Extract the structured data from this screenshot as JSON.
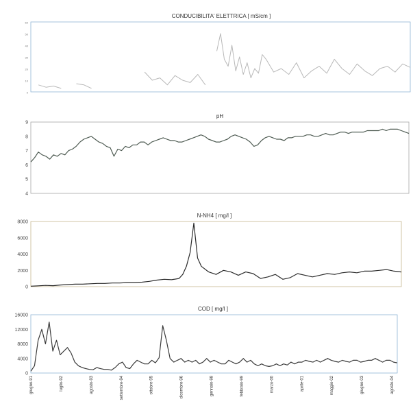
{
  "chart_data": [
    {
      "type": "line",
      "title": "CONDUCIBILITA' ELETTRICA [ mS/cm ]",
      "ylim": [
        0,
        60
      ],
      "yticks": [
        "0",
        "10",
        "20",
        "30",
        "40",
        "50",
        "60"
      ],
      "color": "#b8b8b8",
      "series": [
        {
          "x": [
            0,
            2,
            4,
            6,
            8,
            10,
            12,
            14,
            16,
            18,
            20,
            22,
            24,
            26,
            28,
            30,
            32,
            34,
            36,
            38,
            40,
            42,
            44,
            46,
            48,
            49,
            50,
            51,
            52,
            53,
            54,
            55,
            56,
            57,
            58,
            59,
            60,
            61,
            62,
            64,
            66,
            68,
            70,
            72,
            74,
            76,
            78,
            80,
            82,
            84,
            86,
            88,
            90,
            92,
            94,
            96,
            98,
            100
          ],
          "values": [
            null,
            6,
            4,
            5,
            3,
            null,
            7,
            6,
            3,
            null,
            null,
            null,
            null,
            null,
            null,
            17,
            10,
            12,
            6,
            14,
            10,
            8,
            15,
            6,
            null,
            35,
            50,
            28,
            22,
            40,
            18,
            30,
            15,
            25,
            12,
            20,
            16,
            32,
            28,
            17,
            20,
            15,
            25,
            12,
            18,
            22,
            16,
            28,
            20,
            15,
            24,
            18,
            14,
            20,
            22,
            17,
            24,
            21
          ]
        }
      ]
    },
    {
      "type": "line",
      "title": "pH",
      "ylim": [
        4,
        9
      ],
      "yticks": [
        "4",
        "5",
        "6",
        "7",
        "8",
        "9"
      ],
      "color": "#4e5b52",
      "series": [
        {
          "x": [
            0,
            1,
            2,
            3,
            4,
            5,
            6,
            7,
            8,
            9,
            10,
            11,
            12,
            13,
            14,
            15,
            16,
            17,
            18,
            19,
            20,
            21,
            22,
            23,
            24,
            25,
            26,
            27,
            28,
            29,
            30,
            31,
            32,
            33,
            34,
            35,
            36,
            37,
            38,
            39,
            40,
            41,
            42,
            43,
            44,
            45,
            46,
            47,
            48,
            49,
            50,
            51,
            52,
            53,
            54,
            55,
            56,
            57,
            58,
            59,
            60,
            61,
            62,
            63,
            64,
            65,
            66,
            67,
            68,
            69,
            70,
            71,
            72,
            73,
            74,
            75,
            76,
            77,
            78,
            79,
            80,
            81,
            82,
            83,
            84,
            85,
            86,
            87,
            88,
            89,
            90,
            91,
            92,
            93,
            94,
            95,
            96,
            97,
            98,
            99,
            100
          ],
          "values": [
            6.2,
            6.5,
            6.9,
            6.7,
            6.6,
            6.4,
            6.7,
            6.6,
            6.8,
            6.7,
            7.0,
            7.1,
            7.3,
            7.6,
            7.8,
            7.9,
            8.0,
            7.8,
            7.6,
            7.5,
            7.3,
            7.2,
            6.6,
            7.1,
            7.0,
            7.3,
            7.2,
            7.4,
            7.4,
            7.6,
            7.6,
            7.4,
            7.6,
            7.7,
            7.8,
            7.9,
            7.8,
            7.7,
            7.7,
            7.6,
            7.6,
            7.7,
            7.8,
            7.9,
            8.0,
            8.1,
            8.0,
            7.8,
            7.7,
            7.6,
            7.6,
            7.7,
            7.8,
            8.0,
            8.1,
            8.0,
            7.9,
            7.8,
            7.6,
            7.3,
            7.4,
            7.7,
            7.9,
            8.0,
            7.9,
            7.8,
            7.8,
            7.7,
            7.9,
            7.9,
            8.0,
            8.0,
            8.0,
            8.1,
            8.1,
            8.0,
            8.0,
            8.1,
            8.2,
            8.1,
            8.1,
            8.2,
            8.3,
            8.3,
            8.2,
            8.3,
            8.3,
            8.3,
            8.3,
            8.4,
            8.4,
            8.4,
            8.4,
            8.5,
            8.4,
            8.5,
            8.5,
            8.5,
            8.4,
            8.3,
            8.2
          ]
        }
      ]
    },
    {
      "type": "line",
      "title": "N-NH4 [ mg/l ]",
      "ylim": [
        0,
        8000
      ],
      "yticks": [
        "0",
        "2000",
        "4000",
        "6000",
        "8000"
      ],
      "color": "#2a2a2a",
      "series": [
        {
          "x": [
            0,
            2,
            4,
            6,
            8,
            10,
            12,
            14,
            16,
            18,
            20,
            22,
            24,
            26,
            28,
            30,
            32,
            34,
            36,
            38,
            40,
            41,
            42,
            43,
            44,
            45,
            46,
            48,
            50,
            52,
            54,
            56,
            58,
            60,
            62,
            64,
            66,
            68,
            70,
            72,
            74,
            76,
            78,
            80,
            82,
            84,
            86,
            88,
            90,
            92,
            94,
            96,
            98,
            100
          ],
          "values": [
            50,
            100,
            150,
            120,
            200,
            250,
            300,
            300,
            350,
            400,
            400,
            450,
            450,
            500,
            500,
            550,
            650,
            800,
            900,
            850,
            1000,
            1500,
            2500,
            4200,
            7800,
            3500,
            2500,
            1800,
            1500,
            2000,
            1800,
            1400,
            1800,
            1600,
            1000,
            1200,
            1500,
            900,
            1100,
            1600,
            1400,
            1200,
            1400,
            1600,
            1500,
            1700,
            1800,
            1700,
            1900,
            1900,
            2000,
            2100,
            1900,
            1800
          ]
        }
      ]
    },
    {
      "type": "line",
      "title": "COD [ mg/l ]",
      "ylim": [
        0,
        16000
      ],
      "yticks": [
        "0",
        "4000",
        "8000",
        "12000",
        "16000"
      ],
      "color": "#3a3a3a",
      "categories": [
        "giugno-91",
        "luglio-92",
        "agosto-93",
        "settembre-94",
        "ottobre-95",
        "dicembre-96",
        "gennaio-98",
        "febbraio-99",
        "marzo-00",
        "aprile-01",
        "maggio-02",
        "giugno-03",
        "agosto-04"
      ],
      "series": [
        {
          "x": [
            0,
            1,
            2,
            3,
            4,
            5,
            6,
            7,
            8,
            9,
            10,
            11,
            12,
            13,
            14,
            15,
            16,
            17,
            18,
            19,
            20,
            21,
            22,
            23,
            24,
            25,
            26,
            27,
            28,
            29,
            30,
            31,
            32,
            33,
            34,
            35,
            36,
            37,
            38,
            39,
            40,
            41,
            42,
            43,
            44,
            45,
            46,
            47,
            48,
            49,
            50,
            51,
            52,
            53,
            54,
            55,
            56,
            57,
            58,
            59,
            60,
            61,
            62,
            63,
            64,
            65,
            66,
            67,
            68,
            69,
            70,
            71,
            72,
            73,
            74,
            75,
            76,
            77,
            78,
            79,
            80,
            81,
            82,
            83,
            84,
            85,
            86,
            87,
            88,
            89,
            90,
            91,
            92,
            93,
            94,
            95,
            96,
            97,
            98,
            99,
            100
          ],
          "values": [
            500,
            2000,
            9000,
            12000,
            8000,
            14000,
            6000,
            9000,
            5000,
            6000,
            7000,
            5500,
            3000,
            2000,
            1500,
            1200,
            1000,
            900,
            1500,
            1200,
            1000,
            1000,
            800,
            1500,
            2500,
            3000,
            1500,
            1200,
            2500,
            3500,
            3000,
            2500,
            2500,
            3500,
            2800,
            4200,
            13000,
            9000,
            4000,
            3000,
            3500,
            4000,
            3000,
            3500,
            3000,
            3500,
            2500,
            3000,
            4000,
            3000,
            3500,
            3000,
            2500,
            2500,
            3500,
            3000,
            2500,
            3000,
            4000,
            3000,
            3500,
            2500,
            2000,
            2500,
            2000,
            1800,
            2000,
            2500,
            2000,
            2500,
            2200,
            3000,
            2500,
            3000,
            3000,
            3500,
            3200,
            3000,
            3500,
            3000,
            3500,
            4000,
            3500,
            3200,
            3000,
            3500,
            3200,
            3000,
            3500,
            3500,
            3000,
            3200,
            3500,
            3500,
            4000,
            3500,
            3000,
            3500,
            3500,
            3000,
            2800
          ]
        }
      ]
    }
  ]
}
